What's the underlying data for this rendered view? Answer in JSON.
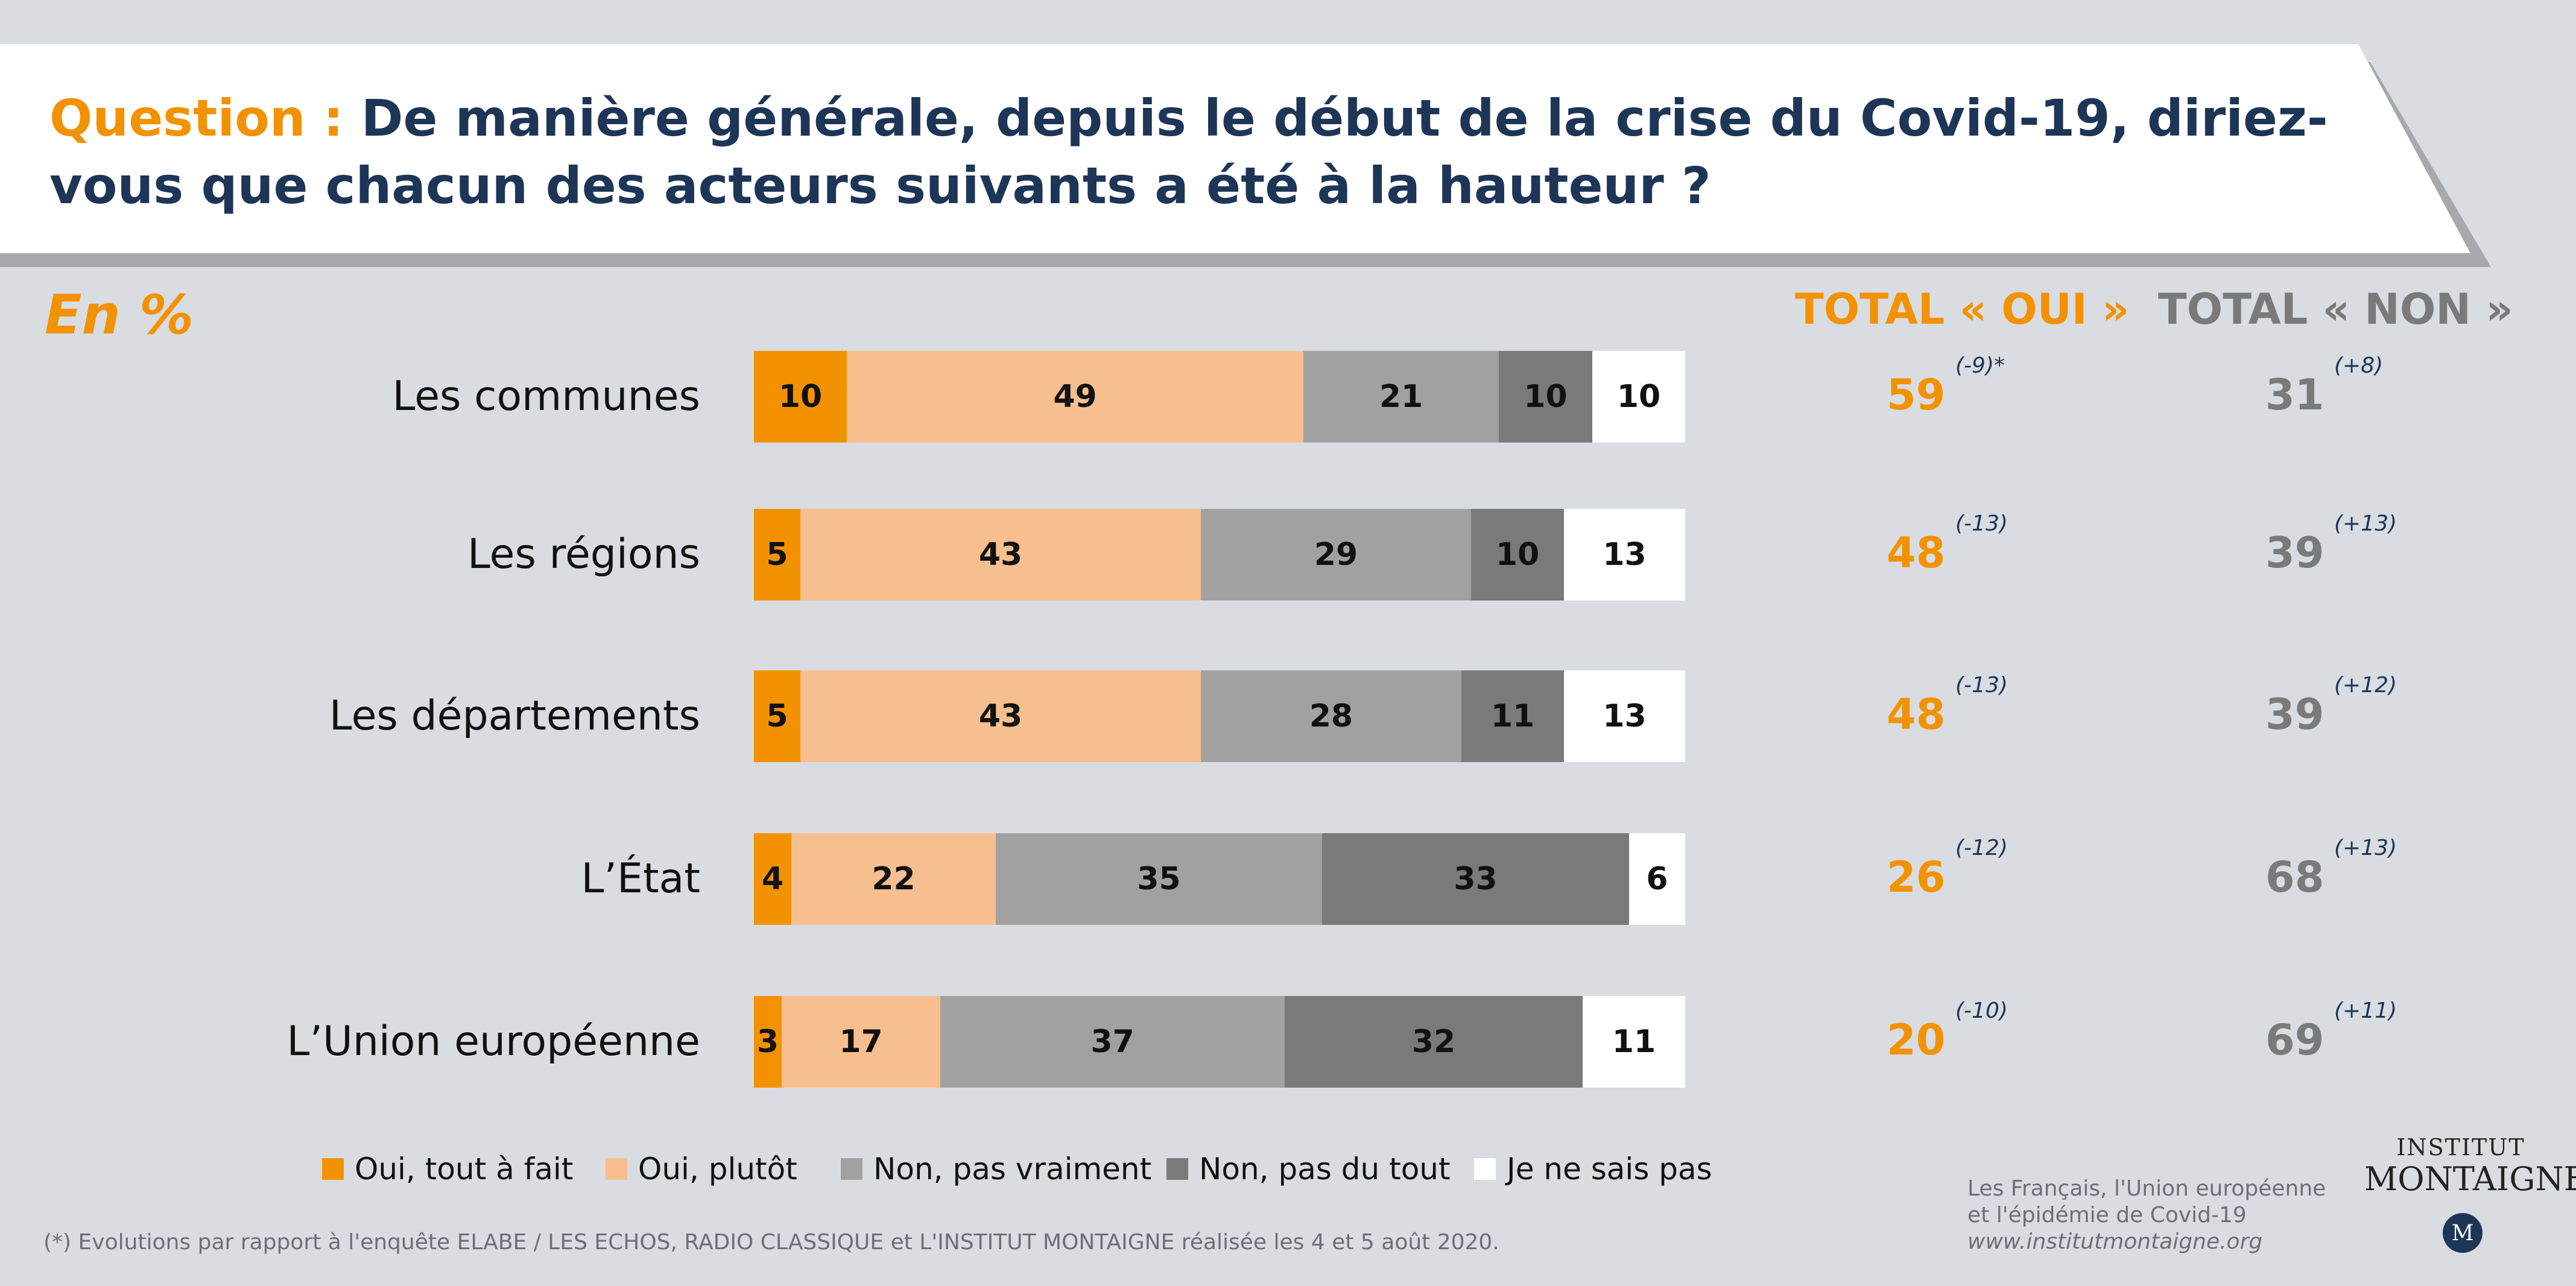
{
  "header": {
    "question_label": "Question :",
    "question_text": "De manière générale, depuis le début de la crise du Covid-19, diriez-vous que chacun des acteurs suivants a été à la hauteur ?"
  },
  "unit_label": "En %",
  "totals_headers": {
    "oui": "TOTAL « OUI »",
    "non": "TOTAL « NON »"
  },
  "colors": {
    "oui_tout_a_fait": "#f39200",
    "oui_plutot": "#f7bf8f",
    "non_pas_vraiment": "#a2a1a1",
    "non_pas_du_tout": "#7a7a7a",
    "ne_sais_pas": "#ffffff",
    "title": "#1d3557"
  },
  "chart_data": {
    "type": "bar",
    "orientation": "horizontal",
    "stacked": true,
    "unit": "%",
    "categories": [
      "Les communes",
      "Les régions",
      "Les départements",
      "L’État",
      "L’Union européenne"
    ],
    "series": [
      {
        "name": "Oui, tout à fait",
        "color": "#f39200",
        "values": [
          10,
          5,
          5,
          4,
          3
        ]
      },
      {
        "name": "Oui, plutôt",
        "color": "#f7bf8f",
        "values": [
          49,
          43,
          43,
          22,
          17
        ]
      },
      {
        "name": "Non, pas vraiment",
        "color": "#a2a1a1",
        "values": [
          21,
          29,
          28,
          35,
          37
        ]
      },
      {
        "name": "Non, pas du tout",
        "color": "#7a7a7a",
        "values": [
          10,
          10,
          11,
          33,
          32
        ]
      },
      {
        "name": "Je ne sais pas",
        "color": "#ffffff",
        "values": [
          10,
          13,
          13,
          6,
          11
        ]
      }
    ],
    "totals_oui": [
      "59",
      "48",
      "48",
      "26",
      "20"
    ],
    "totals_oui_evolution": [
      "(-9)*",
      "(-13)",
      "(-13)",
      "(-12)",
      "(-10)"
    ],
    "totals_non": [
      "31",
      "39",
      "39",
      "68",
      "69"
    ],
    "totals_non_evolution": [
      "(+8)",
      "(+13)",
      "(+12)",
      "(+13)",
      "(+11)"
    ],
    "legend_position": "bottom"
  },
  "footnote": "(*) Evolutions par rapport à l'enquête ELABE / LES ECHOS, RADIO CLASSIQUE et L'INSTITUT MONTAIGNE réalisée les 4 et 5 août 2020.",
  "source": {
    "line1": "Les Français, l'Union européenne",
    "line2": "et l'épidémie de Covid-19",
    "url": "www.institutmontaigne.org"
  },
  "brand": {
    "line1": "INSTITUT",
    "line2": "MONTAIGNE",
    "logo_letter": "M"
  }
}
